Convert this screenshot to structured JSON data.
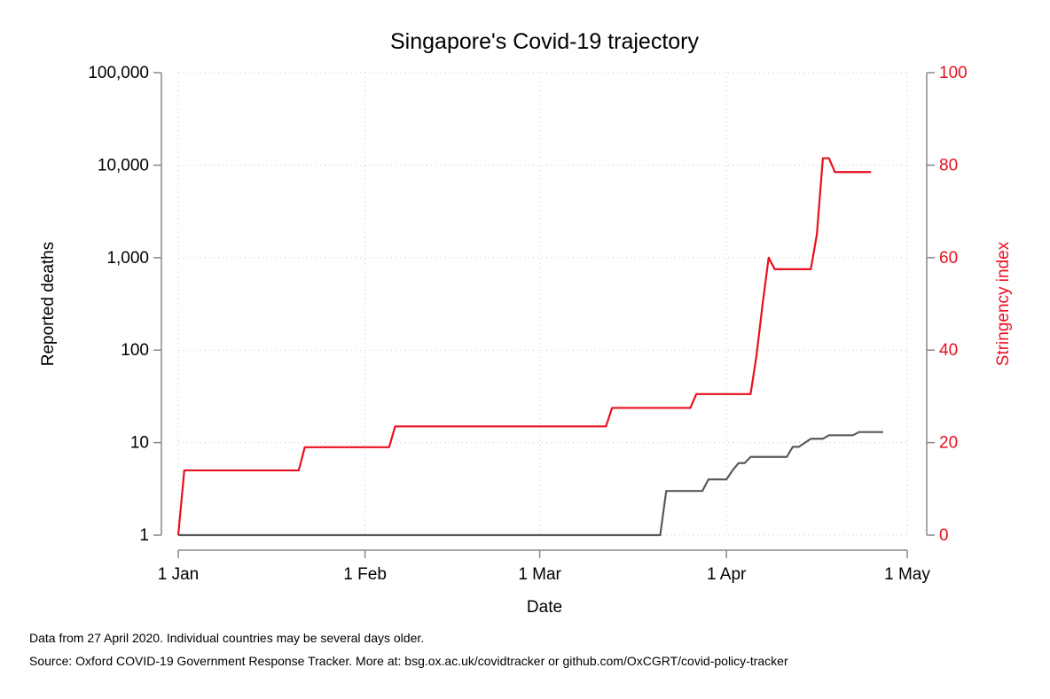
{
  "chart_data": {
    "type": "line",
    "title": "Singapore's Covid-19 trajectory",
    "xlabel": "Date",
    "ylabel": "Reported deaths",
    "y2label": "Stringency index",
    "yscale": "log",
    "ylim": [
      1,
      100000
    ],
    "y2lim": [
      0,
      100
    ],
    "xlim": [
      "2020-01-01",
      "2020-05-01"
    ],
    "xticks": [
      {
        "date": "2020-01-01",
        "label": "1 Jan"
      },
      {
        "date": "2020-02-01",
        "label": "1 Feb"
      },
      {
        "date": "2020-03-01",
        "label": "1 Mar"
      },
      {
        "date": "2020-04-01",
        "label": "1 Apr"
      },
      {
        "date": "2020-05-01",
        "label": "1 May"
      }
    ],
    "yticks": [
      {
        "value": 1,
        "label": "1"
      },
      {
        "value": 10,
        "label": "10"
      },
      {
        "value": 100,
        "label": "100"
      },
      {
        "value": 1000,
        "label": "1,000"
      },
      {
        "value": 10000,
        "label": "10,000"
      },
      {
        "value": 100000,
        "label": "100,000"
      }
    ],
    "y2ticks": [
      {
        "value": 0,
        "label": "0"
      },
      {
        "value": 20,
        "label": "20"
      },
      {
        "value": 40,
        "label": "40"
      },
      {
        "value": 60,
        "label": "60"
      },
      {
        "value": 80,
        "label": "80"
      },
      {
        "value": 100,
        "label": "100"
      }
    ],
    "grid": true,
    "series": [
      {
        "name": "Reported deaths",
        "axis": "left",
        "color": "#5a5a5a",
        "points": [
          [
            "2020-01-01",
            1
          ],
          [
            "2020-03-21",
            1
          ],
          [
            "2020-03-22",
            3
          ],
          [
            "2020-03-28",
            3
          ],
          [
            "2020-03-29",
            4
          ],
          [
            "2020-04-01",
            4
          ],
          [
            "2020-04-02",
            5
          ],
          [
            "2020-04-03",
            6
          ],
          [
            "2020-04-04",
            6
          ],
          [
            "2020-04-05",
            7
          ],
          [
            "2020-04-11",
            7
          ],
          [
            "2020-04-12",
            9
          ],
          [
            "2020-04-13",
            9
          ],
          [
            "2020-04-15",
            11
          ],
          [
            "2020-04-17",
            11
          ],
          [
            "2020-04-18",
            12
          ],
          [
            "2020-04-22",
            12
          ],
          [
            "2020-04-23",
            13
          ],
          [
            "2020-04-27",
            13
          ]
        ]
      },
      {
        "name": "Stringency index",
        "axis": "right",
        "color": "#e8101e",
        "points": [
          [
            "2020-01-01",
            0
          ],
          [
            "2020-01-02",
            14
          ],
          [
            "2020-01-21",
            14
          ],
          [
            "2020-01-22",
            19
          ],
          [
            "2020-02-05",
            19
          ],
          [
            "2020-02-06",
            23.5
          ],
          [
            "2020-03-12",
            23.5
          ],
          [
            "2020-03-13",
            27.5
          ],
          [
            "2020-03-26",
            27.5
          ],
          [
            "2020-03-27",
            30.5
          ],
          [
            "2020-04-05",
            30.5
          ],
          [
            "2020-04-06",
            39
          ],
          [
            "2020-04-07",
            50
          ],
          [
            "2020-04-08",
            60
          ],
          [
            "2020-04-09",
            57.5
          ],
          [
            "2020-04-15",
            57.5
          ],
          [
            "2020-04-16",
            65
          ],
          [
            "2020-04-17",
            81.5
          ],
          [
            "2020-04-18",
            81.5
          ],
          [
            "2020-04-19",
            78.5
          ],
          [
            "2020-04-25",
            78.5
          ]
        ]
      }
    ]
  },
  "notes": {
    "line1": "Data from 27 April 2020. Individual countries may be several days older.",
    "line2": "Source: Oxford COVID-19 Government Response Tracker. More at: bsg.ox.ac.uk/covidtracker or github.com/OxCGRT/covid-policy-tracker"
  }
}
